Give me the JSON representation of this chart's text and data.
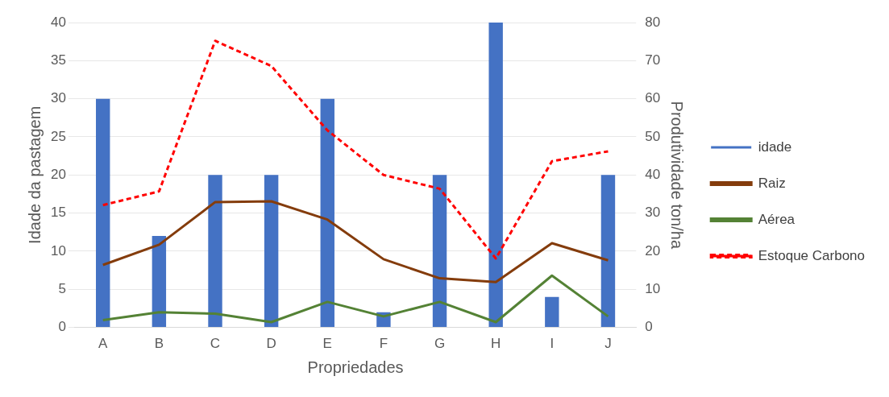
{
  "chart_data": {
    "type": "bar",
    "xlabel": "Propriedades",
    "ylabel": "Idade da pastagem",
    "y2label": "Produtividade ton/ha",
    "categories": [
      "A",
      "B",
      "C",
      "D",
      "E",
      "F",
      "G",
      "H",
      "I",
      "J"
    ],
    "series": [
      {
        "name": "idade",
        "color": "#4472c4",
        "values": [
          30,
          12,
          20,
          20,
          30,
          2,
          20,
          40,
          4,
          20
        ]
      },
      {
        "name": "Raiz",
        "type": "line",
        "axis": "y2",
        "color": "#843c0c",
        "line_style": "solid",
        "values": [
          16.4,
          21.7,
          32.9,
          33.1,
          28.3,
          17.9,
          12.9,
          11.9,
          22.1,
          17.6
        ]
      },
      {
        "name": "Aérea",
        "type": "line",
        "axis": "y2",
        "color": "#548235",
        "line_style": "solid",
        "values": [
          1.9,
          4,
          3.6,
          1.4,
          6.7,
          2.9,
          6.7,
          1.4,
          13.6,
          2.9
        ]
      },
      {
        "name": "Estoque Carbono",
        "type": "line",
        "axis": "y2",
        "color": "#ff0000",
        "line_style": "dashed",
        "values": [
          32.1,
          35.7,
          75.2,
          68.6,
          51.7,
          40,
          36.4,
          18.1,
          43.6,
          46.2
        ]
      }
    ],
    "ylim": [
      0,
      40
    ],
    "yticks": [
      0,
      5,
      10,
      15,
      20,
      25,
      30,
      35,
      40
    ],
    "y2lim": [
      0,
      80
    ],
    "y2ticks": [
      0,
      10,
      20,
      30,
      40,
      50,
      60,
      70,
      80
    ],
    "grid": "y",
    "legend": "right",
    "marker": "none"
  }
}
